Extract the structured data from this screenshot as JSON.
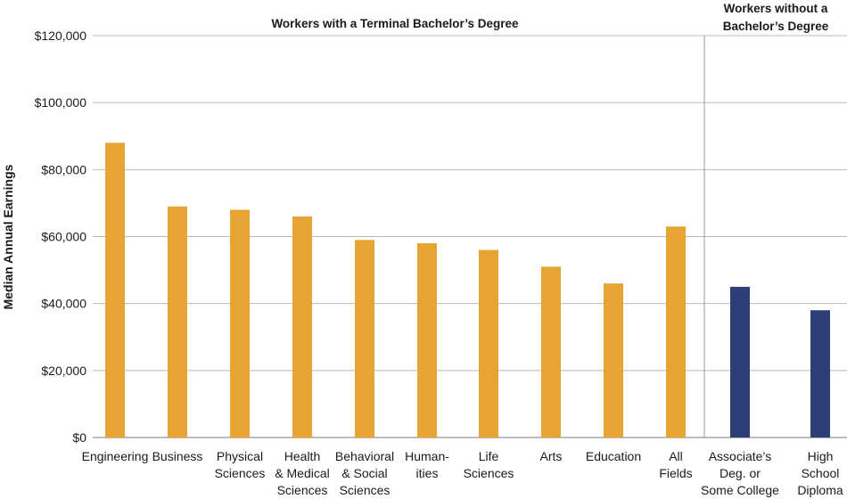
{
  "chart_data": {
    "type": "bar",
    "title": "",
    "xlabel": "",
    "ylabel": "Median Annual Earnings",
    "ylim": [
      0,
      120000
    ],
    "y_ticks": [
      0,
      20000,
      40000,
      60000,
      80000,
      100000,
      120000
    ],
    "y_tick_labels": [
      "$0",
      "$20,000",
      "$40,000",
      "$60,000",
      "$80,000",
      "$100,000",
      "$120,000"
    ],
    "grid": true,
    "groups": [
      {
        "label": "Workers with a Terminal Bachelor’s Degree",
        "color": "#E8A433"
      },
      {
        "label_lines": [
          "Workers without a",
          "Bachelor’s Degree"
        ],
        "color": "#2E3F78"
      }
    ],
    "categories": [
      {
        "lines": [
          "Engineering"
        ],
        "value": 88000,
        "group": 0
      },
      {
        "lines": [
          "Business"
        ],
        "value": 69000,
        "group": 0
      },
      {
        "lines": [
          "Physical",
          "Sciences"
        ],
        "value": 68000,
        "group": 0
      },
      {
        "lines": [
          "Health",
          "& Medical",
          "Sciences"
        ],
        "value": 66000,
        "group": 0
      },
      {
        "lines": [
          "Behavioral",
          "& Social",
          "Sciences"
        ],
        "value": 59000,
        "group": 0
      },
      {
        "lines": [
          "Human-",
          "ities"
        ],
        "value": 58000,
        "group": 0
      },
      {
        "lines": [
          "Life",
          "Sciences"
        ],
        "value": 56000,
        "group": 0
      },
      {
        "lines": [
          "Arts"
        ],
        "value": 51000,
        "group": 0
      },
      {
        "lines": [
          "Education"
        ],
        "value": 46000,
        "group": 0
      },
      {
        "lines": [
          "All",
          "Fields"
        ],
        "value": 63000,
        "group": 0
      },
      {
        "lines": [
          "Associate’s",
          "Deg. or",
          "Some College"
        ],
        "value": 45000,
        "group": 1
      },
      {
        "lines": [
          "High",
          "School",
          "Diploma"
        ],
        "value": 38000,
        "group": 1
      }
    ]
  }
}
